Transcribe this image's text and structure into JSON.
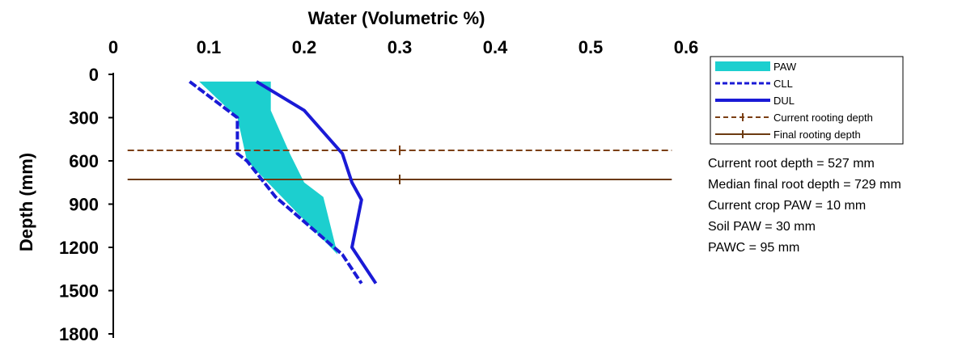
{
  "chart_data": {
    "type": "line",
    "title": "",
    "xlabel": "Water (Volumetric %)",
    "ylabel": "Depth (mm)",
    "x_ticks": [
      "0",
      "0.1",
      "0.2",
      "0.3",
      "0.4",
      "0.5",
      "0.6"
    ],
    "y_ticks": [
      "0",
      "300",
      "600",
      "900",
      "1200",
      "1500",
      "1800"
    ],
    "xlim": [
      0,
      0.6
    ],
    "ylim": [
      0,
      1800
    ],
    "x_axis_position": "top",
    "y_axis_inverted": true,
    "grid": false,
    "legend_position": "right",
    "series": [
      {
        "name": "CLL",
        "style": "dashed",
        "color": "#1a1ad6",
        "points": [
          {
            "x": 0.08,
            "y": 50
          },
          {
            "x": 0.13,
            "y": 300
          },
          {
            "x": 0.13,
            "y": 550
          },
          {
            "x": 0.14,
            "y": 600
          },
          {
            "x": 0.17,
            "y": 850
          },
          {
            "x": 0.24,
            "y": 1250
          },
          {
            "x": 0.26,
            "y": 1450
          }
        ]
      },
      {
        "name": "DUL",
        "style": "solid",
        "color": "#1a1ad6",
        "points": [
          {
            "x": 0.15,
            "y": 50
          },
          {
            "x": 0.2,
            "y": 250
          },
          {
            "x": 0.24,
            "y": 550
          },
          {
            "x": 0.25,
            "y": 750
          },
          {
            "x": 0.26,
            "y": 870
          },
          {
            "x": 0.25,
            "y": 1200
          },
          {
            "x": 0.275,
            "y": 1450
          }
        ]
      },
      {
        "name": "PAW",
        "style": "fill",
        "color": "#1ccfcf",
        "points": [
          {
            "x": 0.09,
            "y": 50
          },
          {
            "x": 0.165,
            "y": 50
          },
          {
            "x": 0.165,
            "y": 250
          },
          {
            "x": 0.185,
            "y": 550
          },
          {
            "x": 0.2,
            "y": 750
          },
          {
            "x": 0.22,
            "y": 850
          },
          {
            "x": 0.235,
            "y": 1250
          },
          {
            "x": 0.14,
            "y": 600
          },
          {
            "x": 0.13,
            "y": 300
          },
          {
            "x": 0.09,
            "y": 50
          }
        ]
      },
      {
        "name": "Current rooting depth",
        "style": "dashed-marker",
        "color": "#7b3f14",
        "y": 527,
        "marker_x": 0.3
      },
      {
        "name": "Final rooting depth",
        "style": "solid-marker",
        "color": "#6b3a10",
        "y": 729,
        "marker_x": 0.3
      }
    ],
    "legend": [
      "PAW",
      "CLL",
      "DUL",
      "Current rooting depth",
      "Final rooting depth"
    ]
  },
  "stats": [
    "Current root depth = 527 mm",
    "Median final root depth = 729 mm",
    "Current crop PAW = 10 mm",
    "Soil PAW = 30 mm",
    "PAWC = 95 mm"
  ]
}
